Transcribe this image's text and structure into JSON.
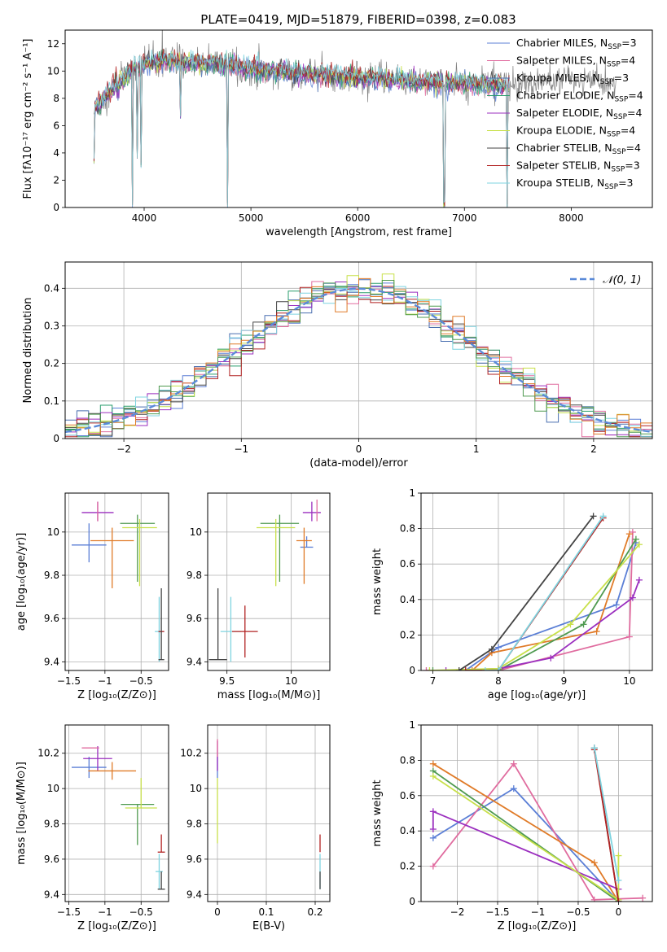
{
  "figure_title": "PLATE=0419, MJD=51879, FIBERID=0398, z=0.083",
  "colors": {
    "Chabrier MILES": "#5b7fd6",
    "Salpeter MILES": "#e06c9f",
    "Kroupa MILES": "#4a6fb0",
    "Chabrier ELODIE": "#2a9d6c",
    "Salpeter ELODIE": "#9b2fbf",
    "Kroupa ELODIE": "#c8e04a",
    "Chabrier STELIB": "#444444",
    "Salpeter STELIB": "#b22222",
    "Kroupa STELIB": "#7fd4e0",
    "orange": "#e07b28",
    "green": "#4f9a50",
    "data": "#808080",
    "gaussian": "#5a8ad8"
  },
  "chart_data": [
    {
      "type": "line",
      "id": "spectrum",
      "title": "PLATE=0419, MJD=51879, FIBERID=0398, z=0.083",
      "xlabel": "wavelength [Angstrom, rest frame]",
      "ylabel": "Flux [fλ10⁻¹⁷ erg cm⁻² s⁻¹ A⁻¹]",
      "xlim": [
        3260,
        8760
      ],
      "ylim": [
        0,
        13
      ],
      "xticks": [
        4000,
        5000,
        6000,
        7000,
        8000
      ],
      "yticks": [
        0,
        2,
        4,
        6,
        8,
        10,
        12
      ],
      "grid": false,
      "legend_position": "top-right",
      "legend": [
        {
          "name": "Chabrier MILES, N_SSP=3",
          "label_main": "Chabrier MILES, N",
          "label_sub": "SSP",
          "label_end": "=3",
          "color": "#5b7fd6"
        },
        {
          "name": "Salpeter MILES, N_SSP=4",
          "label_main": "Salpeter MILES, N",
          "label_sub": "SSP",
          "label_end": "=4",
          "color": "#e06c9f"
        },
        {
          "name": "Kroupa MILES, N_SSP=3",
          "label_main": "Kroupa MILES, N",
          "label_sub": "SSP",
          "label_end": "=3",
          "color": "#4a6fb0"
        },
        {
          "name": "Chabrier ELODIE, N_SSP=4",
          "label_main": "Chabrier ELODIE, N",
          "label_sub": "SSP",
          "label_end": "=4",
          "color": "#2a9d6c"
        },
        {
          "name": "Salpeter ELODIE, N_SSP=4",
          "label_main": "Salpeter ELODIE, N",
          "label_sub": "SSP",
          "label_end": "=4",
          "color": "#9b2fbf"
        },
        {
          "name": "Kroupa ELODIE, N_SSP=4",
          "label_main": "Kroupa ELODIE, N",
          "label_sub": "SSP",
          "label_end": "=4",
          "color": "#c8e04a"
        },
        {
          "name": "Chabrier STELIB, N_SSP=4",
          "label_main": "Chabrier STELIB, N",
          "label_sub": "SSP",
          "label_end": "=4",
          "color": "#444444"
        },
        {
          "name": "Salpeter STELIB, N_SSP=3",
          "label_main": "Salpeter STELIB, N",
          "label_sub": "SSP",
          "label_end": "=3",
          "color": "#b22222"
        },
        {
          "name": "Kroupa STELIB, N_SSP=3",
          "label_main": "Kroupa STELIB, N",
          "label_sub": "SSP",
          "label_end": "=3",
          "color": "#7fd4e0"
        }
      ],
      "continuum": {
        "x": [
          3530,
          3600,
          3700,
          3800,
          3900,
          4000,
          4100,
          4200,
          4300,
          4400,
          4600,
          4800,
          5000,
          5200,
          5500,
          6000,
          6500,
          7000,
          7400
        ],
        "y": [
          7.2,
          7.8,
          8.6,
          9.3,
          10.2,
          10.5,
          10.6,
          10.8,
          10.7,
          10.5,
          10.6,
          10.5,
          10.1,
          10.0,
          9.8,
          9.5,
          9.3,
          9.1,
          8.9
        ]
      },
      "data_continuum": {
        "x": [
          3530,
          3800,
          4000,
          4200,
          4500,
          5000,
          5500,
          6000,
          6500,
          7000,
          7500,
          8000,
          8400
        ],
        "y": [
          7.0,
          9.5,
          10.5,
          10.8,
          10.6,
          10.0,
          9.8,
          9.6,
          9.2,
          9.0,
          9.1,
          9.4,
          9.0
        ]
      },
      "model_dips": [
        {
          "x": 3530,
          "y": 3.2
        },
        {
          "x": 3890,
          "y": 0.0
        },
        {
          "x": 3935,
          "y": 3.5
        },
        {
          "x": 3970,
          "y": 2.8
        },
        {
          "x": 4340,
          "y": 6.5
        },
        {
          "x": 4780,
          "y": 0.0
        },
        {
          "x": 6810,
          "y": 0.0
        },
        {
          "x": 7400,
          "y": 0.0
        }
      ],
      "data_noise_amplitude": 1.2
    },
    {
      "type": "line",
      "id": "residual-histogram",
      "xlabel": "(data-model)/error",
      "ylabel": "Normed distribution",
      "xlim": [
        -2.5,
        2.5
      ],
      "ylim": [
        0,
        0.47
      ],
      "xticks": [
        -2,
        -1,
        0,
        1,
        2
      ],
      "yticks": [
        0.0,
        0.1,
        0.2,
        0.3,
        0.4
      ],
      "grid": true,
      "legend_position": "top-right",
      "gaussian_label": "𝒩(0, 1)",
      "bin_width": 0.1,
      "bin_start": -2.5,
      "n_bins": 50
    },
    {
      "type": "scatter",
      "id": "age-vs-Z",
      "xlabel": "Z [log₁₀(Z/Z⊙)]",
      "ylabel": "age  [log₁₀(age/yr)]",
      "xlim": [
        -1.55,
        -0.12
      ],
      "ylim": [
        9.36,
        10.18
      ],
      "xticks": [
        -1.5,
        -1.0,
        -0.5
      ],
      "yticks": [
        9.4,
        9.6,
        9.8,
        10.0
      ],
      "grid": true,
      "points": [
        {
          "x": -1.22,
          "y": 9.94,
          "xerr": 0.24,
          "yerr_lo": 0.08,
          "yerr_hi": 0.1,
          "color": "#5b7fd6"
        },
        {
          "x": -1.1,
          "y": 10.09,
          "xerr": 0.22,
          "yerr_lo": 0.04,
          "yerr_hi": 0.05,
          "color": "#9b2fbf"
        },
        {
          "x": -1.1,
          "y": 10.09,
          "xerr": 0.0,
          "yerr_lo": 0.04,
          "yerr_hi": 0.05,
          "color": "#e06c9f"
        },
        {
          "x": -0.9,
          "y": 9.96,
          "xerr": 0.3,
          "yerr_lo": 0.22,
          "yerr_hi": 0.06,
          "color": "#e07b28"
        },
        {
          "x": -0.55,
          "y": 10.04,
          "xerr": 0.24,
          "yerr_lo": 0.27,
          "yerr_hi": 0.04,
          "color": "#4f9a50"
        },
        {
          "x": -0.52,
          "y": 10.02,
          "xerr": 0.24,
          "yerr_lo": 0.27,
          "yerr_hi": 0.04,
          "color": "#c8e04a"
        },
        {
          "x": -0.25,
          "y": 9.54,
          "xerr": 0.06,
          "yerr_lo": 0.14,
          "yerr_hi": 0.16,
          "color": "#7fd4e0"
        },
        {
          "x": -0.22,
          "y": 9.54,
          "xerr": 0.04,
          "yerr_lo": 0.0,
          "yerr_hi": 0.0,
          "color": "#b22222"
        },
        {
          "x": -0.22,
          "y": 9.41,
          "xerr": 0.04,
          "yerr_lo": 0.0,
          "yerr_hi": 0.33,
          "color": "#444444"
        }
      ]
    },
    {
      "type": "scatter",
      "id": "age-vs-mass",
      "xlabel": "mass [log₁₀(M/M⊙)]",
      "ylabel": "",
      "xlim": [
        9.35,
        10.3
      ],
      "ylim": [
        9.36,
        10.18
      ],
      "xticks": [
        9.5,
        10.0
      ],
      "yticks": [
        9.4,
        9.6,
        9.8,
        10.0
      ],
      "grid": true,
      "points": [
        {
          "x": 10.12,
          "y": 9.93,
          "xerr": 0.05,
          "yerr_lo": 0.0,
          "yerr_hi": 0.05,
          "color": "#5b7fd6"
        },
        {
          "x": 10.16,
          "y": 10.09,
          "xerr": 0.07,
          "yerr_lo": 0.04,
          "yerr_hi": 0.05,
          "color": "#9b2fbf"
        },
        {
          "x": 10.2,
          "y": 10.1,
          "xerr": 0.0,
          "yerr_lo": 0.05,
          "yerr_hi": 0.05,
          "color": "#e06c9f"
        },
        {
          "x": 10.1,
          "y": 9.96,
          "xerr": 0.06,
          "yerr_lo": 0.2,
          "yerr_hi": 0.06,
          "color": "#e07b28"
        },
        {
          "x": 9.91,
          "y": 10.04,
          "xerr": 0.15,
          "yerr_lo": 0.27,
          "yerr_hi": 0.04,
          "color": "#4f9a50"
        },
        {
          "x": 9.88,
          "y": 10.02,
          "xerr": 0.15,
          "yerr_lo": 0.27,
          "yerr_hi": 0.04,
          "color": "#c8e04a"
        },
        {
          "x": 9.53,
          "y": 9.54,
          "xerr": 0.08,
          "yerr_lo": 0.14,
          "yerr_hi": 0.16,
          "color": "#7fd4e0"
        },
        {
          "x": 9.64,
          "y": 9.54,
          "xerr": 0.1,
          "yerr_lo": 0.12,
          "yerr_hi": 0.12,
          "color": "#b22222"
        },
        {
          "x": 9.43,
          "y": 9.41,
          "xerr": 0.07,
          "yerr_lo": 0.0,
          "yerr_hi": 0.33,
          "color": "#444444"
        }
      ]
    },
    {
      "type": "line",
      "id": "massweight-vs-age",
      "xlabel": "age  [log₁₀(age/yr)]",
      "ylabel": "mass weight",
      "xlim": [
        6.82,
        10.35
      ],
      "ylim": [
        0,
        1.0
      ],
      "xticks": [
        7,
        8,
        9,
        10
      ],
      "yticks": [
        0.0,
        0.2,
        0.4,
        0.6,
        0.8,
        1.0
      ],
      "grid": true,
      "series": [
        {
          "color": "#5b7fd6",
          "x": [
            7.5,
            8.0,
            9.8,
            10.1
          ],
          "y": [
            0.0,
            0.13,
            0.37,
            0.72
          ]
        },
        {
          "color": "#e06c9f",
          "x": [
            6.9,
            8.0,
            10.0,
            10.05
          ],
          "y": [
            0.0,
            0.0,
            0.19,
            0.78
          ]
        },
        {
          "color": "#e07b28",
          "x": [
            7.6,
            7.9,
            9.5,
            10.0
          ],
          "y": [
            0.0,
            0.1,
            0.22,
            0.77
          ]
        },
        {
          "color": "#4f9a50",
          "x": [
            7.0,
            8.0,
            9.3,
            10.1
          ],
          "y": [
            0.0,
            0.0,
            0.26,
            0.74
          ]
        },
        {
          "color": "#9b2fbf",
          "x": [
            7.2,
            8.0,
            8.8,
            10.05,
            10.15
          ],
          "y": [
            0.0,
            0.01,
            0.07,
            0.41,
            0.51
          ]
        },
        {
          "color": "#c8e04a",
          "x": [
            6.95,
            8.0,
            9.1,
            10.15
          ],
          "y": [
            0.0,
            0.01,
            0.26,
            0.71
          ]
        },
        {
          "color": "#444444",
          "x": [
            7.4,
            7.9,
            9.45
          ],
          "y": [
            0.0,
            0.12,
            0.87
          ]
        },
        {
          "color": "#b22222",
          "x": [
            7.5,
            8.0,
            9.6
          ],
          "y": [
            0.0,
            0.0,
            0.86
          ]
        },
        {
          "color": "#7fd4e0",
          "x": [
            7.8,
            8.0,
            9.6
          ],
          "y": [
            0.0,
            0.0,
            0.87
          ]
        }
      ]
    },
    {
      "type": "scatter",
      "id": "mass-vs-Z",
      "xlabel": "Z [log₁₀(Z/Z⊙)]",
      "ylabel": "mass [log₁₀(M/M⊙)]",
      "xlim": [
        -1.55,
        -0.12
      ],
      "ylim": [
        9.36,
        10.36
      ],
      "xticks": [
        -1.5,
        -1.0,
        -0.5
      ],
      "yticks": [
        9.4,
        9.6,
        9.8,
        10.0,
        10.2
      ],
      "grid": true,
      "points": [
        {
          "x": -1.22,
          "y": 10.12,
          "xerr": 0.24,
          "yerr_lo": 0.06,
          "yerr_hi": 0.06,
          "color": "#5b7fd6"
        },
        {
          "x": -1.1,
          "y": 10.17,
          "xerr": 0.2,
          "yerr_lo": 0.07,
          "yerr_hi": 0.07,
          "color": "#9b2fbf"
        },
        {
          "x": -1.2,
          "y": 10.23,
          "xerr": 0.12,
          "yerr_lo": 0.0,
          "yerr_hi": 0.0,
          "color": "#e06c9f"
        },
        {
          "x": -0.9,
          "y": 10.1,
          "xerr": 0.33,
          "yerr_lo": 0.05,
          "yerr_hi": 0.05,
          "color": "#e07b28"
        },
        {
          "x": -0.55,
          "y": 9.91,
          "xerr": 0.23,
          "yerr_lo": 0.23,
          "yerr_hi": 0.0,
          "color": "#4f9a50"
        },
        {
          "x": -0.5,
          "y": 9.89,
          "xerr": 0.22,
          "yerr_lo": 0.0,
          "yerr_hi": 0.17,
          "color": "#c8e04a"
        },
        {
          "x": -0.25,
          "y": 9.53,
          "xerr": 0.05,
          "yerr_lo": 0.1,
          "yerr_hi": 0.1,
          "color": "#7fd4e0"
        },
        {
          "x": -0.22,
          "y": 9.64,
          "xerr": 0.05,
          "yerr_lo": 0.0,
          "yerr_hi": 0.1,
          "color": "#b22222"
        },
        {
          "x": -0.22,
          "y": 9.43,
          "xerr": 0.05,
          "yerr_lo": 0.0,
          "yerr_hi": 0.1,
          "color": "#444444"
        }
      ]
    },
    {
      "type": "scatter",
      "id": "mass-vs-ebv",
      "xlabel": "E(B-V)",
      "ylabel": "",
      "xlim": [
        -0.02,
        0.23
      ],
      "ylim": [
        9.36,
        10.36
      ],
      "xticks": [
        0.0,
        0.1,
        0.2
      ],
      "yticks": [
        9.4,
        9.6,
        9.8,
        10.0,
        10.2
      ],
      "grid": true,
      "points": [
        {
          "x": 0.0,
          "y": 10.12,
          "xerr": 0.0,
          "yerr_lo": 0.06,
          "yerr_hi": 0.06,
          "color": "#5b7fd6"
        },
        {
          "x": 0.0,
          "y": 10.17,
          "xerr": 0.0,
          "yerr_lo": 0.07,
          "yerr_hi": 0.1,
          "color": "#9b2fbf"
        },
        {
          "x": 0.0,
          "y": 10.23,
          "xerr": 0.0,
          "yerr_lo": 0.05,
          "yerr_hi": 0.05,
          "color": "#e06c9f"
        },
        {
          "x": 0.0,
          "y": 9.89,
          "xerr": 0.0,
          "yerr_lo": 0.2,
          "yerr_hi": 0.17,
          "color": "#c8e04a"
        },
        {
          "x": 0.21,
          "y": 9.53,
          "xerr": 0.0,
          "yerr_lo": 0.1,
          "yerr_hi": 0.1,
          "color": "#7fd4e0"
        },
        {
          "x": 0.21,
          "y": 9.64,
          "xerr": 0.0,
          "yerr_lo": 0.0,
          "yerr_hi": 0.1,
          "color": "#b22222"
        },
        {
          "x": 0.21,
          "y": 9.43,
          "xerr": 0.0,
          "yerr_lo": 0.0,
          "yerr_hi": 0.1,
          "color": "#444444"
        }
      ]
    },
    {
      "type": "line",
      "id": "massweight-vs-Z",
      "xlabel": "Z [log₁₀(Z/Z⊙)]",
      "ylabel": "mass weight",
      "xlim": [
        -2.45,
        0.42
      ],
      "ylim": [
        0,
        1.0
      ],
      "xticks": [
        -2.0,
        -1.5,
        -1.0,
        -0.5,
        0.0
      ],
      "yticks": [
        0.0,
        0.2,
        0.4,
        0.6,
        0.8,
        1.0
      ],
      "grid": true,
      "series": [
        {
          "color": "#5b7fd6",
          "x": [
            -2.3,
            -1.3,
            0.0
          ],
          "y": [
            0.36,
            0.64,
            0.0
          ]
        },
        {
          "color": "#e06c9f",
          "x": [
            -2.3,
            -1.3,
            -0.3,
            0.3
          ],
          "y": [
            0.2,
            0.78,
            0.01,
            0.02
          ]
        },
        {
          "color": "#e07b28",
          "x": [
            -2.3,
            -0.3,
            0.0
          ],
          "y": [
            0.78,
            0.22,
            0.0
          ]
        },
        {
          "color": "#4f9a50",
          "x": [
            -2.3,
            0.0
          ],
          "y": [
            0.74,
            0.0
          ]
        },
        {
          "color": "#9b2fbf",
          "x": [
            -2.3,
            -2.3,
            0.0
          ],
          "y": [
            0.41,
            0.51,
            0.07
          ]
        },
        {
          "color": "#c8e04a",
          "x": [
            -2.3,
            0.0,
            0.0
          ],
          "y": [
            0.71,
            0.01,
            0.26
          ]
        },
        {
          "color": "#444444",
          "x": [
            -0.3,
            0.0
          ],
          "y": [
            0.87,
            0.0
          ]
        },
        {
          "color": "#b22222",
          "x": [
            -0.3,
            0.0
          ],
          "y": [
            0.86,
            0.0
          ]
        },
        {
          "color": "#7fd4e0",
          "x": [
            -0.3,
            0.0
          ],
          "y": [
            0.87,
            0.12
          ]
        }
      ]
    }
  ]
}
